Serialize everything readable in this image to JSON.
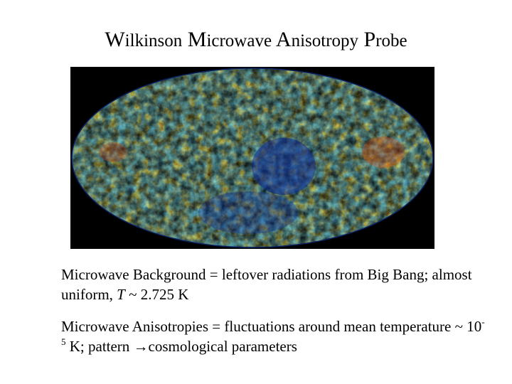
{
  "slide": {
    "title_words": [
      {
        "cap": "W",
        "rest": "ilkinson"
      },
      {
        "cap": "M",
        "rest": "icrowave"
      },
      {
        "cap": "A",
        "rest": "nisotropy"
      },
      {
        "cap": "P",
        "rest": "robe"
      }
    ],
    "map_colors": {
      "background": "#000000",
      "base": "#2aa8b8",
      "cold": "#0a2a9a",
      "cool": "#1e6fd0",
      "warm": "#c8d820",
      "hot": "#e85010",
      "hottest": "#c00808"
    },
    "bullets": [
      {
        "text_pre": "Microwave Background = leftover radiations from Big Bang; almost uniform, ",
        "var": "T",
        "text_post": " ~ 2.725 K"
      },
      {
        "text_pre": "Microwave Anisotropies = fluctuations around mean temperature ~ 10",
        "sup": "-5",
        "text_post": " K; pattern →cosmological parameters"
      }
    ]
  }
}
